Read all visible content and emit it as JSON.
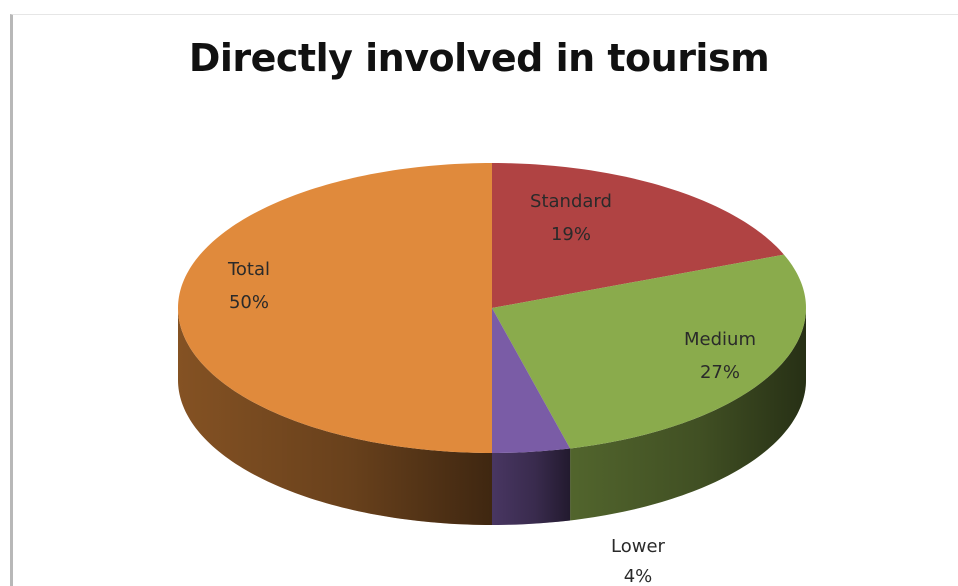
{
  "chart_data": {
    "type": "pie",
    "title": "Directly involved in tourism",
    "slices": [
      {
        "label": "Standard",
        "value": 19,
        "value_label": "19%",
        "color": "#b04343"
      },
      {
        "label": "Medium",
        "value": 27,
        "value_label": "27%",
        "color": "#8aab4c"
      },
      {
        "label": "Lower",
        "value": 4,
        "value_label": "4%",
        "color": "#7a5ca6"
      },
      {
        "label": "Total",
        "value": 50,
        "value_label": "50%",
        "color": "#e08a3c"
      }
    ],
    "start_angle_deg": 0,
    "direction": "clockwise",
    "style": "3d",
    "data_labels": true,
    "legend": "none"
  }
}
